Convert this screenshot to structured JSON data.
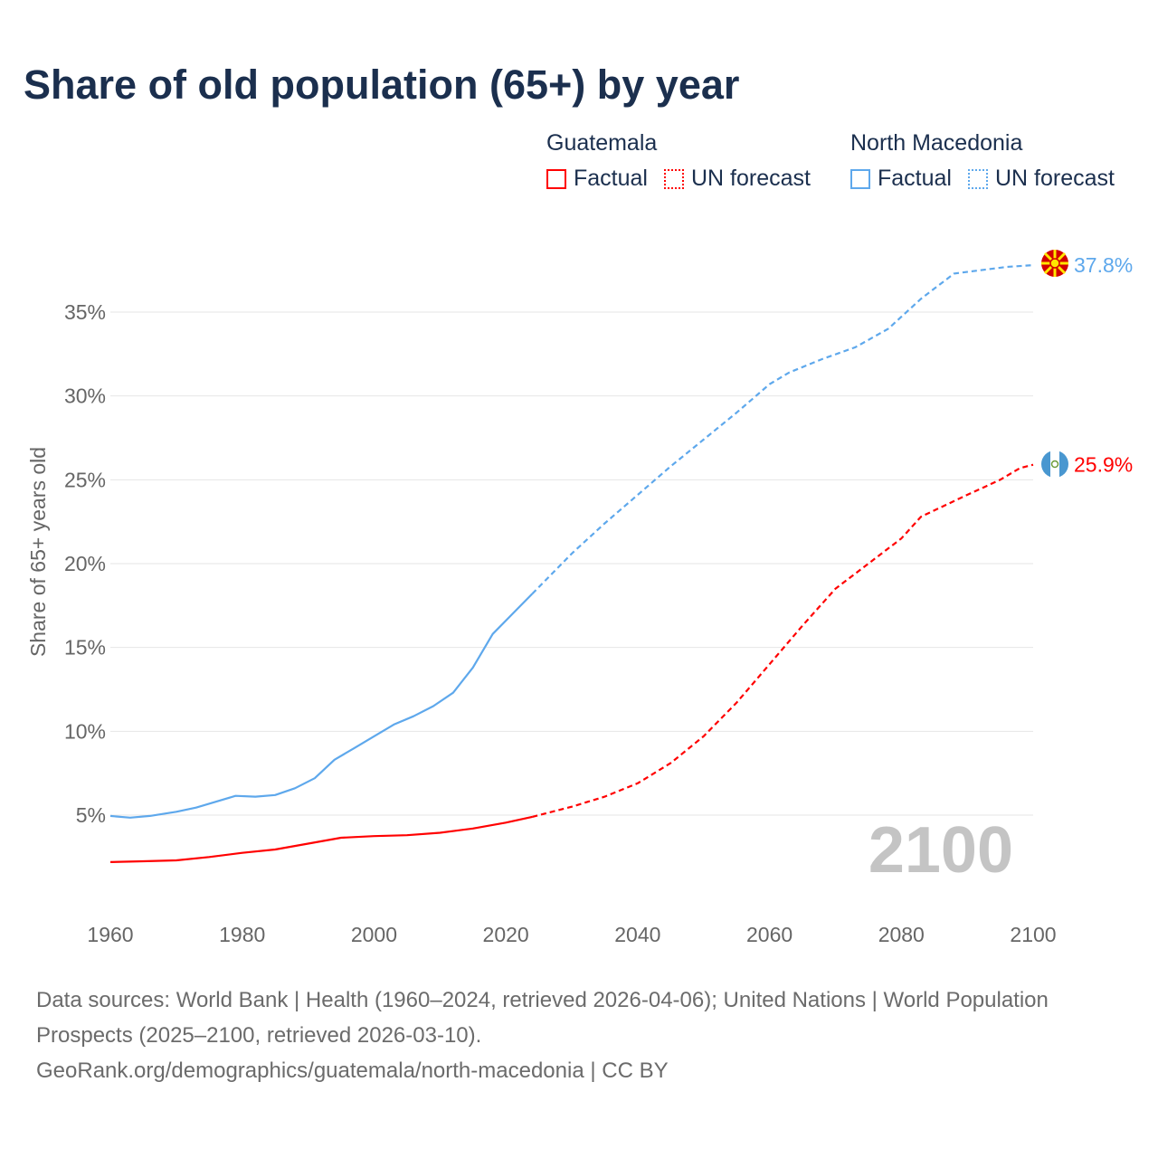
{
  "title": "Share of old population (65+) by year",
  "legend": {
    "groups": [
      {
        "name": "Guatemala",
        "color": "#ff0000",
        "factual": "Factual",
        "forecast": "UN forecast"
      },
      {
        "name": "North Macedonia",
        "color": "#5ea8ec",
        "factual": "Factual",
        "forecast": "UN forecast"
      }
    ]
  },
  "year_watermark": "2100",
  "footer": {
    "sources": "Data sources: World Bank | Health (1960–2024, retrieved 2026-04-06); United Nations | World Population Prospects (2025–2100, retrieved 2026-03-10).",
    "credit": "GeoRank.org/demographics/guatemala/north-macedonia | CC BY"
  },
  "chart_data": {
    "type": "line",
    "title": "Share of old population (65+) by year",
    "xlabel": "",
    "ylabel": "Share of 65+ years old",
    "xlim": [
      1960,
      2100
    ],
    "ylim": [
      0,
      38
    ],
    "x_ticks": [
      "1960",
      "1980",
      "2000",
      "2020",
      "2040",
      "2060",
      "2080",
      "2100"
    ],
    "y_ticks": [
      "5%",
      "10%",
      "15%",
      "20%",
      "25%",
      "30%",
      "35%"
    ],
    "y_tick_values": [
      5,
      10,
      15,
      20,
      25,
      30,
      35
    ],
    "grid": true,
    "factual_end_year": 2024,
    "series": [
      {
        "name": "North Macedonia",
        "color": "#5ea8ec",
        "end_label": "37.8%",
        "x": [
          1960,
          1963,
          1966,
          1970,
          1973,
          1976,
          1979,
          1982,
          1985,
          1988,
          1991,
          1994,
          1997,
          2000,
          2003,
          2006,
          2009,
          2012,
          2015,
          2018,
          2021,
          2024,
          2030,
          2035,
          2040,
          2045,
          2050,
          2055,
          2060,
          2063,
          2068,
          2073,
          2078,
          2083,
          2088,
          2092,
          2096,
          2100
        ],
        "y": [
          4.95,
          4.85,
          4.95,
          5.2,
          5.45,
          5.8,
          6.15,
          6.1,
          6.2,
          6.6,
          7.2,
          8.3,
          9.0,
          9.7,
          10.4,
          10.9,
          11.5,
          12.3,
          13.8,
          15.8,
          17.0,
          18.2,
          20.6,
          22.4,
          24.1,
          25.8,
          27.4,
          29.0,
          30.7,
          31.4,
          32.2,
          32.9,
          34.0,
          35.8,
          37.3,
          37.5,
          37.7,
          37.8
        ]
      },
      {
        "name": "Guatemala",
        "color": "#ff0000",
        "end_label": "25.9%",
        "x": [
          1960,
          1965,
          1970,
          1975,
          1980,
          1985,
          1990,
          1995,
          2000,
          2005,
          2010,
          2015,
          2020,
          2024,
          2030,
          2035,
          2040,
          2045,
          2050,
          2055,
          2060,
          2065,
          2070,
          2075,
          2080,
          2083,
          2090,
          2095,
          2098,
          2100
        ],
        "y": [
          2.2,
          2.25,
          2.3,
          2.5,
          2.75,
          2.95,
          3.3,
          3.65,
          3.75,
          3.8,
          3.95,
          4.2,
          4.55,
          4.9,
          5.5,
          6.1,
          6.9,
          8.1,
          9.7,
          11.7,
          14.0,
          16.3,
          18.5,
          20.0,
          21.5,
          22.8,
          24.1,
          25.0,
          25.7,
          25.9
        ]
      }
    ]
  }
}
